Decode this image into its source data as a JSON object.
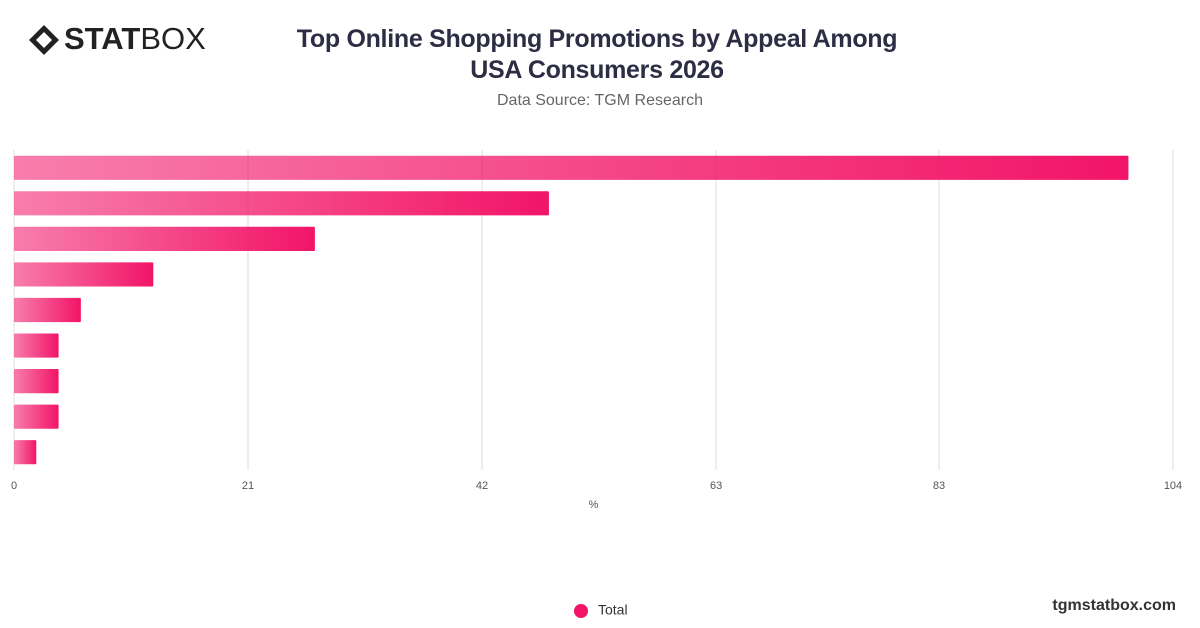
{
  "logo": [
    "STAT",
    "BOX"
  ],
  "watermark": "tgmstatbox.com",
  "chart_data": {
    "type": "hbar",
    "title": "Top Online Shopping Promotions by Appeal Among USA Consumers 2026",
    "subtitle": "Data Source: TGM Research",
    "x_label": "%",
    "categories": [
      null,
      null,
      null,
      null,
      null,
      null,
      null,
      null,
      null
    ],
    "series": [
      {
        "name": "Total",
        "color": "#f21468",
        "values": [
          100,
          48,
          27,
          12.5,
          6,
          4,
          4,
          4,
          2
        ]
      }
    ],
    "ylim": [
      0,
      104
    ],
    "yticks": [
      0,
      21,
      42,
      63,
      83,
      104
    ],
    "grid": true,
    "legend": "bottom"
  }
}
